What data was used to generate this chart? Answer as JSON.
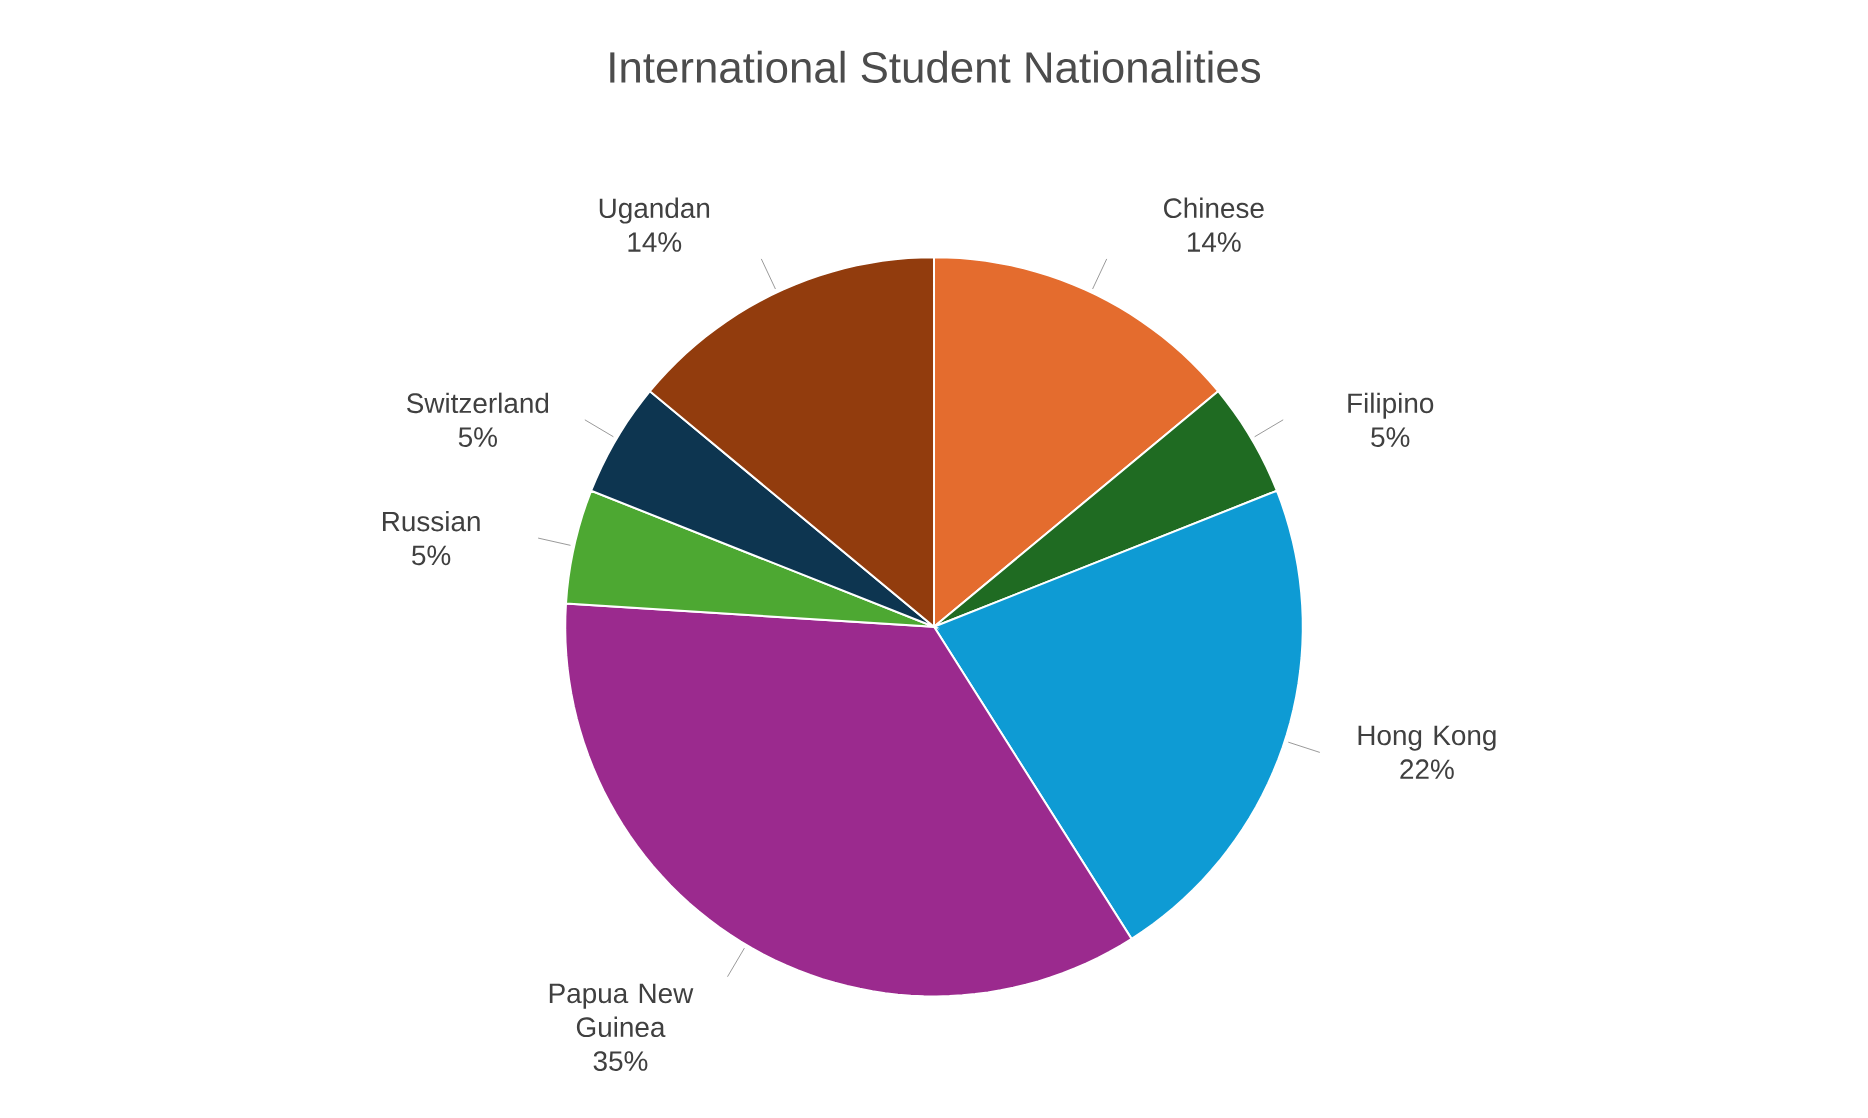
{
  "chart_data": {
    "type": "pie",
    "title": "International Student Nationalities",
    "categories": [
      "Chinese",
      "Filipino",
      "Hong Kong",
      "Papua New Guinea",
      "Russian",
      "Switzerland",
      "Ugandan"
    ],
    "values": [
      14,
      5,
      22,
      35,
      5,
      5,
      14
    ],
    "colors": [
      "#e46c2e",
      "#1f6b22",
      "#0e9bd4",
      "#9b2a8e",
      "#4da832",
      "#0d3550",
      "#923c0d"
    ],
    "value_labels": [
      "14%",
      "5%",
      "22%",
      "35%",
      "5%",
      "5%",
      "14%"
    ]
  }
}
